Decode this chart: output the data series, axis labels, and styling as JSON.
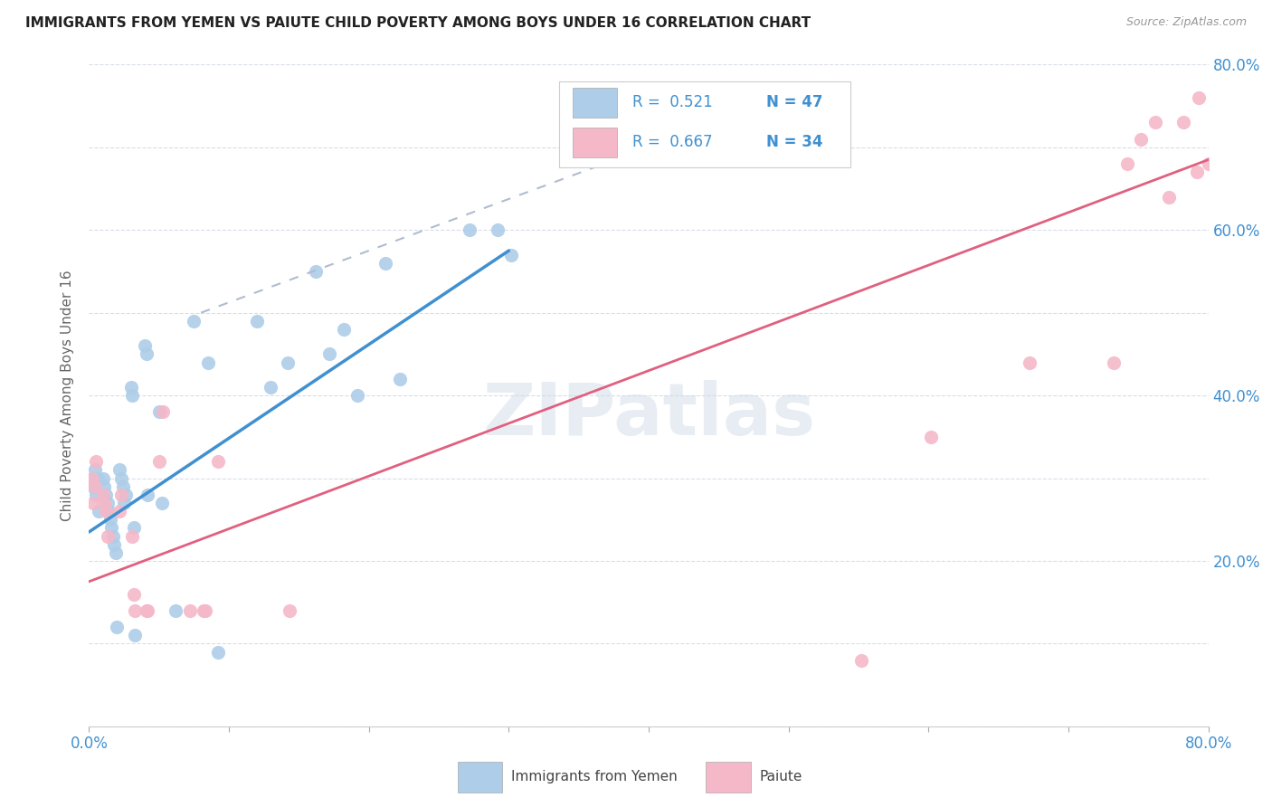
{
  "title": "IMMIGRANTS FROM YEMEN VS PAIUTE CHILD POVERTY AMONG BOYS UNDER 16 CORRELATION CHART",
  "source": "Source: ZipAtlas.com",
  "ylabel": "Child Poverty Among Boys Under 16",
  "xlim": [
    0.0,
    0.8
  ],
  "ylim": [
    0.0,
    0.8
  ],
  "x_ticks": [
    0.0,
    0.1,
    0.2,
    0.3,
    0.4,
    0.5,
    0.6,
    0.7,
    0.8
  ],
  "y_ticks": [
    0.0,
    0.1,
    0.2,
    0.3,
    0.4,
    0.5,
    0.6,
    0.7,
    0.8
  ],
  "watermark": "ZIPatlas",
  "legend_r1": "R =  0.521",
  "legend_n1": "N = 47",
  "legend_r2": "R =  0.667",
  "legend_n2": "N = 34",
  "color_blue": "#aecde8",
  "color_pink": "#f4b8c8",
  "color_blue_text": "#4090d0",
  "color_trend_blue": "#4090d0",
  "color_trend_pink": "#e06080",
  "color_trend_dashed": "#b0bcd0",
  "blue_dots_x": [
    0.002,
    0.003,
    0.004,
    0.005,
    0.006,
    0.007,
    0.01,
    0.011,
    0.012,
    0.013,
    0.014,
    0.015,
    0.016,
    0.017,
    0.018,
    0.019,
    0.02,
    0.022,
    0.023,
    0.024,
    0.025,
    0.026,
    0.03,
    0.031,
    0.032,
    0.033,
    0.04,
    0.041,
    0.042,
    0.05,
    0.052,
    0.062,
    0.075,
    0.085,
    0.092,
    0.12,
    0.13,
    0.142,
    0.162,
    0.172,
    0.182,
    0.192,
    0.212,
    0.222,
    0.272,
    0.292,
    0.302
  ],
  "blue_dots_y": [
    0.3,
    0.29,
    0.31,
    0.28,
    0.3,
    0.26,
    0.3,
    0.29,
    0.28,
    0.27,
    0.26,
    0.25,
    0.24,
    0.23,
    0.22,
    0.21,
    0.12,
    0.31,
    0.3,
    0.29,
    0.27,
    0.28,
    0.41,
    0.4,
    0.24,
    0.11,
    0.46,
    0.45,
    0.28,
    0.38,
    0.27,
    0.14,
    0.49,
    0.44,
    0.09,
    0.49,
    0.41,
    0.44,
    0.55,
    0.45,
    0.48,
    0.4,
    0.56,
    0.42,
    0.6,
    0.6,
    0.57
  ],
  "pink_dots_x": [
    0.002,
    0.003,
    0.004,
    0.005,
    0.01,
    0.011,
    0.012,
    0.013,
    0.022,
    0.023,
    0.031,
    0.032,
    0.033,
    0.041,
    0.042,
    0.05,
    0.053,
    0.072,
    0.082,
    0.083,
    0.092,
    0.143,
    0.552,
    0.602,
    0.672,
    0.732,
    0.742,
    0.752,
    0.762,
    0.772,
    0.782,
    0.792,
    0.793,
    0.8
  ],
  "pink_dots_y": [
    0.3,
    0.27,
    0.29,
    0.32,
    0.28,
    0.27,
    0.26,
    0.23,
    0.26,
    0.28,
    0.23,
    0.16,
    0.14,
    0.14,
    0.14,
    0.32,
    0.38,
    0.14,
    0.14,
    0.14,
    0.32,
    0.14,
    0.08,
    0.35,
    0.44,
    0.44,
    0.68,
    0.71,
    0.73,
    0.64,
    0.73,
    0.67,
    0.76,
    0.68
  ],
  "blue_trend_x": [
    0.0,
    0.3
  ],
  "blue_trend_y": [
    0.235,
    0.575
  ],
  "pink_trend_x": [
    0.0,
    0.8
  ],
  "pink_trend_y": [
    0.175,
    0.685
  ],
  "dashed_trend_x": [
    0.08,
    0.4
  ],
  "dashed_trend_y": [
    0.5,
    0.7
  ]
}
